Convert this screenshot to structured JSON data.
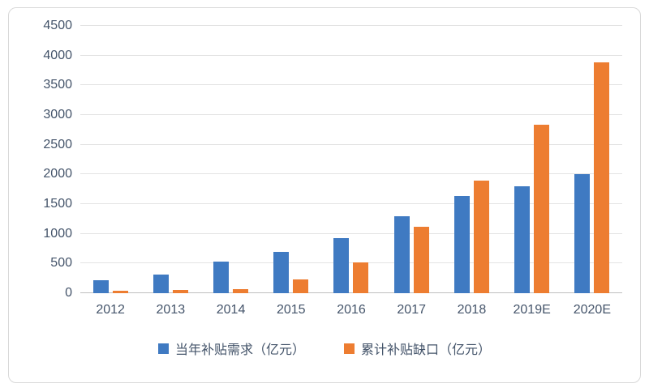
{
  "chart_data": {
    "type": "bar",
    "categories": [
      "2012",
      "2013",
      "2014",
      "2015",
      "2016",
      "2017",
      "2018",
      "2019E",
      "2020E"
    ],
    "series": [
      {
        "name": "当年补贴需求（亿元）",
        "color": "#3f7ac2",
        "values": [
          220,
          320,
          530,
          700,
          930,
          1300,
          1630,
          1800,
          2000
        ]
      },
      {
        "name": "累计补贴缺口（亿元）",
        "color": "#ed7d31",
        "values": [
          40,
          60,
          70,
          230,
          520,
          1120,
          1900,
          2830,
          3880
        ]
      }
    ],
    "title": "",
    "xlabel": "",
    "ylabel": "",
    "ylim": [
      0,
      4500
    ],
    "ytick_step": 500,
    "grid": true,
    "legend_position": "bottom"
  },
  "legend": {
    "series1_label": "当年补贴需求（亿元）",
    "series2_label": "累计补贴缺口（亿元）"
  }
}
